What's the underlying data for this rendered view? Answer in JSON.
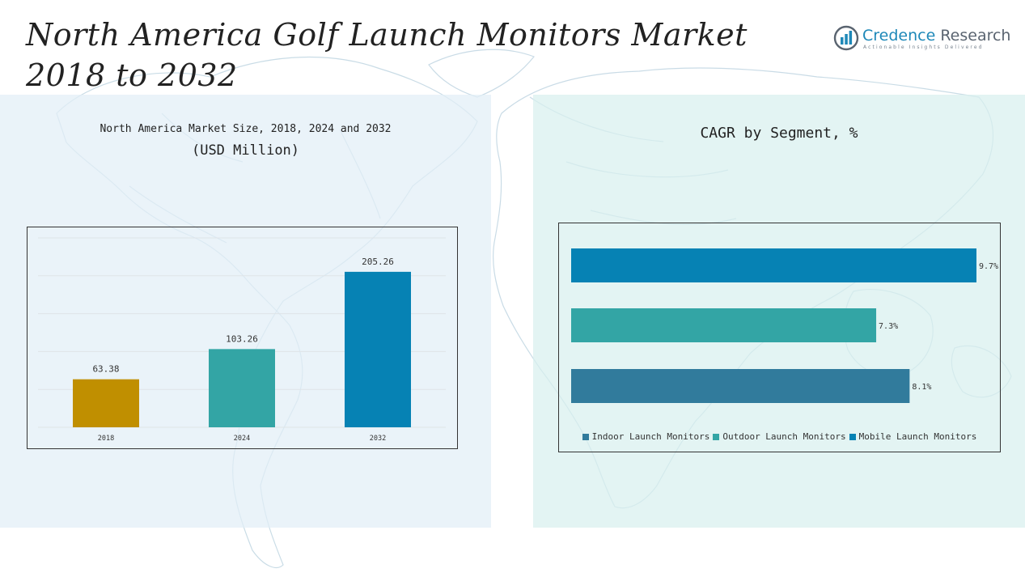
{
  "header": {
    "title_line1": "North America Golf Launch Monitors Market",
    "title_line2": "2018 to 2032"
  },
  "logo": {
    "name_accent": "Credence",
    "name_rest": " Research",
    "tagline": "Actionable Insights Delivered",
    "icon": "bar-chart-circle-icon"
  },
  "colors": {
    "gold": "#C08F00",
    "teal": "#33A5A5",
    "blue": "#0682B4",
    "steel": "#317B9C"
  },
  "chart_data": [
    {
      "type": "bar",
      "title": "North America Market Size, 2018, 2024 and 2032",
      "subtitle": "(USD Million)",
      "categories": [
        "2018",
        "2024",
        "2032"
      ],
      "values": [
        63.38,
        103.26,
        205.26
      ],
      "value_labels": [
        "63.38",
        "103.26",
        "205.26"
      ],
      "bar_colors": [
        "#C08F00",
        "#33A5A5",
        "#0682B4"
      ],
      "ylim": [
        0,
        250
      ],
      "grid": true,
      "xlabel": "",
      "ylabel": ""
    },
    {
      "type": "bar",
      "orientation": "horizontal",
      "title": "CAGR by Segment, %",
      "categories": [
        "Mobile Launch Monitors",
        "Outdoor Launch Monitors",
        "Indoor Launch Monitors"
      ],
      "values": [
        9.7,
        7.3,
        8.1
      ],
      "value_labels": [
        "9.7%",
        "7.3%",
        "8.1%"
      ],
      "bar_colors": [
        "#0682B4",
        "#33A5A5",
        "#317B9C"
      ],
      "xlim": [
        0,
        9.7
      ],
      "grid": false,
      "legend": {
        "position": "bottom",
        "entries": [
          {
            "label": "Indoor Launch Monitors",
            "color": "#317B9C"
          },
          {
            "label": "Outdoor Launch Monitors",
            "color": "#33A5A5"
          },
          {
            "label": "Mobile Launch Monitors",
            "color": "#0682B4"
          }
        ]
      }
    }
  ]
}
